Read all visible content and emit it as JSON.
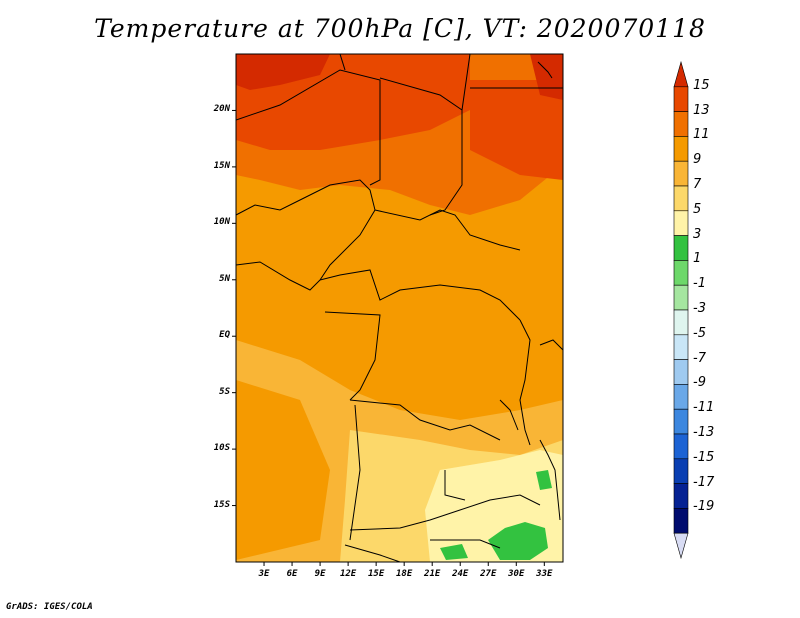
{
  "title": "Temperature at 700hPa [C], VT: 2020070118",
  "footer": "GrADS: IGES/COLA",
  "map": {
    "lat_ticks": [
      "20N",
      "15N",
      "10N",
      "5N",
      "EQ",
      "5S",
      "10S",
      "15S"
    ],
    "lon_ticks": [
      "3E",
      "6E",
      "9E",
      "12E",
      "15E",
      "18E",
      "21E",
      "24E",
      "27E",
      "30E",
      "33E"
    ],
    "lon_range": [
      0,
      35
    ],
    "lat_range": [
      -20,
      25
    ]
  },
  "colorbar": {
    "labels": [
      "15",
      "13",
      "11",
      "9",
      "7",
      "5",
      "3",
      "1",
      "-1",
      "-3",
      "-5",
      "-7",
      "-9",
      "-11",
      "-13",
      "-15",
      "-17",
      "-19"
    ],
    "colors": [
      "#d42a00",
      "#e84800",
      "#f07000",
      "#f59a00",
      "#f9b536",
      "#fcd86a",
      "#fff3a8",
      "#33c240",
      "#6dd86a",
      "#a5e6a0",
      "#dff5ef",
      "#c9e6f7",
      "#9fcaf0",
      "#6aa8e8",
      "#3c87df",
      "#1c63d4",
      "#0a3fb2",
      "#052293",
      "#000c6e",
      "#d8dcf4"
    ]
  }
}
